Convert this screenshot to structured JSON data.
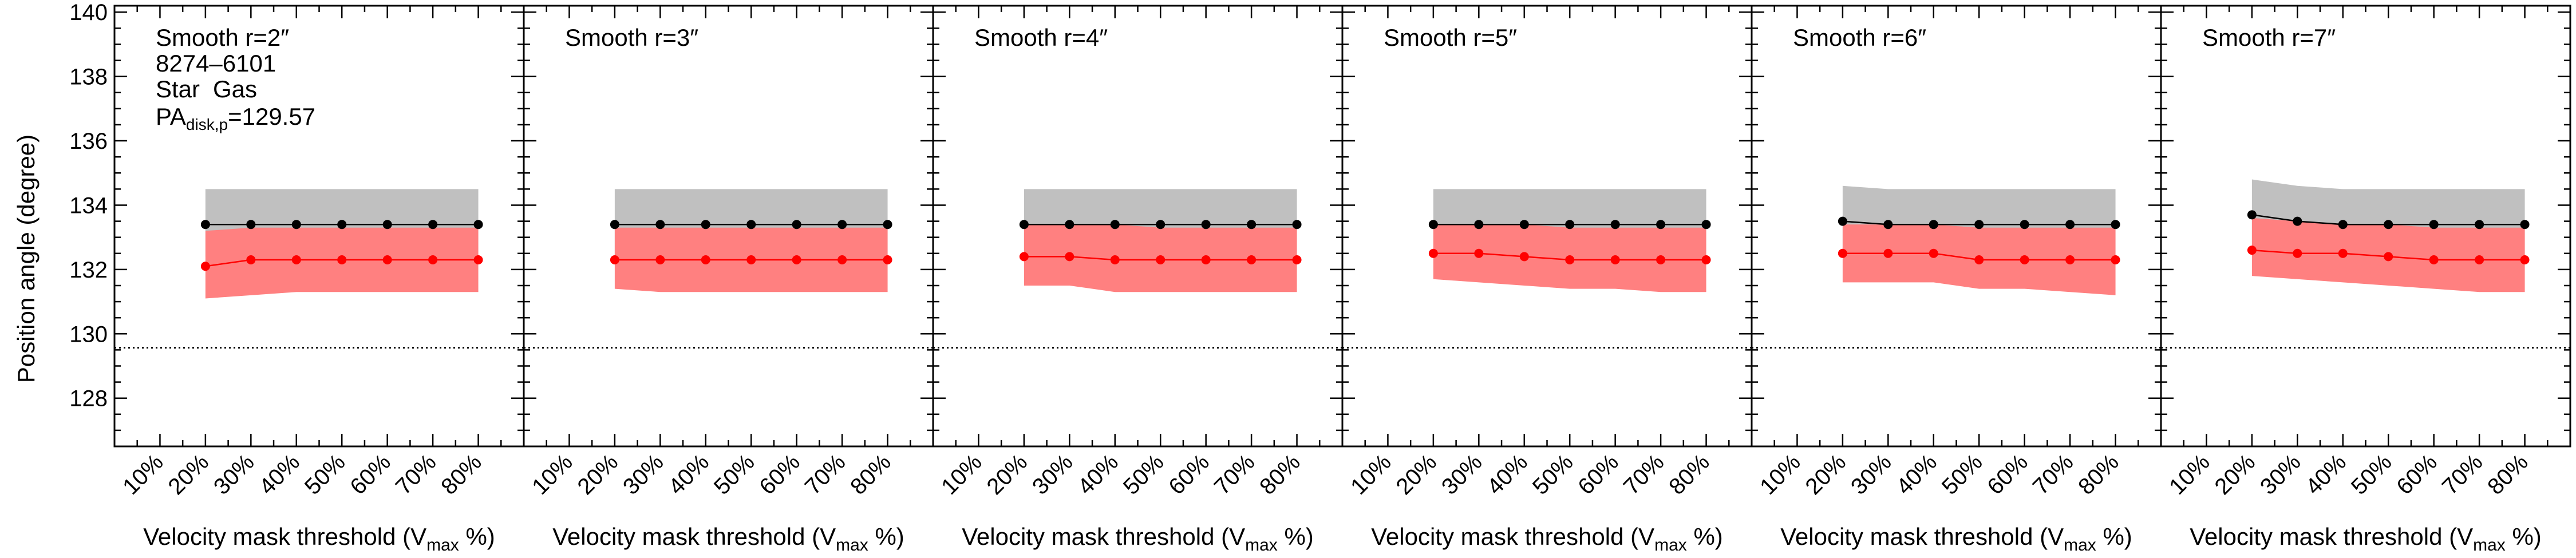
{
  "figure": {
    "galaxy_id": "8274–6101",
    "legend_star": "Star",
    "legend_gas": "Gas",
    "pa_prefix": "PA",
    "pa_subscript": "disk,p",
    "pa_value_text": "=129.57",
    "ylabel": "Position angle (degree)",
    "xlabel_prefix": "Velocity mask threshold (V",
    "xlabel_sub": "max",
    "xlabel_suffix": " %)"
  },
  "colors": {
    "star_line": "#000000",
    "star_band": "#c0c0c0",
    "gas_line": "#ff0000",
    "gas_band": "#ff8080",
    "legend_gas_text": "#ff0000",
    "ref_line": "#000000"
  },
  "chart_data": {
    "type": "line",
    "x_tick_labels": [
      "10%",
      "20%",
      "30%",
      "40%",
      "50%",
      "60%",
      "70%",
      "80%"
    ],
    "x_ticks": [
      10,
      20,
      30,
      40,
      50,
      60,
      70,
      80
    ],
    "xlim": [
      0,
      90
    ],
    "ylim": [
      126.5,
      140.2
    ],
    "y_ticks": [
      128,
      130,
      132,
      134,
      136,
      138,
      140
    ],
    "y_tick_labels": [
      "128",
      "130",
      "132",
      "134",
      "136",
      "138",
      "140"
    ],
    "reference_line": 129.57,
    "x": [
      20,
      30,
      40,
      50,
      60,
      70,
      80
    ],
    "panels": [
      {
        "title": "Smooth r=2″",
        "star": [
          133.4,
          133.4,
          133.4,
          133.4,
          133.4,
          133.4,
          133.4
        ],
        "star_band_upper": [
          134.5,
          134.5,
          134.5,
          134.5,
          134.5,
          134.5,
          134.5
        ],
        "star_band_lower": [
          132.4,
          132.4,
          132.4,
          132.4,
          132.4,
          132.4,
          132.4
        ],
        "gas": [
          132.1,
          132.3,
          132.3,
          132.3,
          132.3,
          132.3,
          132.3
        ],
        "gas_band_upper": [
          133.2,
          133.3,
          133.3,
          133.3,
          133.3,
          133.3,
          133.3
        ],
        "gas_band_lower": [
          131.1,
          131.2,
          131.3,
          131.3,
          131.3,
          131.3,
          131.3
        ]
      },
      {
        "title": "Smooth r=3″",
        "star": [
          133.4,
          133.4,
          133.4,
          133.4,
          133.4,
          133.4,
          133.4
        ],
        "star_band_upper": [
          134.5,
          134.5,
          134.5,
          134.5,
          134.5,
          134.5,
          134.5
        ],
        "star_band_lower": [
          132.4,
          132.4,
          132.4,
          132.4,
          132.4,
          132.4,
          132.4
        ],
        "gas": [
          132.3,
          132.3,
          132.3,
          132.3,
          132.3,
          132.3,
          132.3
        ],
        "gas_band_upper": [
          133.3,
          133.3,
          133.3,
          133.3,
          133.3,
          133.3,
          133.3
        ],
        "gas_band_lower": [
          131.4,
          131.3,
          131.3,
          131.3,
          131.3,
          131.3,
          131.3
        ]
      },
      {
        "title": "Smooth r=4″",
        "star": [
          133.4,
          133.4,
          133.4,
          133.4,
          133.4,
          133.4,
          133.4
        ],
        "star_band_upper": [
          134.5,
          134.5,
          134.5,
          134.5,
          134.5,
          134.5,
          134.5
        ],
        "star_band_lower": [
          132.4,
          132.4,
          132.4,
          132.4,
          132.4,
          132.4,
          132.4
        ],
        "gas": [
          132.4,
          132.4,
          132.3,
          132.3,
          132.3,
          132.3,
          132.3
        ],
        "gas_band_upper": [
          133.4,
          133.4,
          133.4,
          133.3,
          133.3,
          133.3,
          133.3
        ],
        "gas_band_lower": [
          131.5,
          131.5,
          131.3,
          131.3,
          131.3,
          131.3,
          131.3
        ]
      },
      {
        "title": "Smooth r=5″",
        "star": [
          133.4,
          133.4,
          133.4,
          133.4,
          133.4,
          133.4,
          133.4
        ],
        "star_band_upper": [
          134.5,
          134.5,
          134.5,
          134.5,
          134.5,
          134.5,
          134.5
        ],
        "star_band_lower": [
          132.4,
          132.4,
          132.4,
          132.4,
          132.4,
          132.4,
          132.4
        ],
        "gas": [
          132.5,
          132.5,
          132.4,
          132.3,
          132.3,
          132.3,
          132.3
        ],
        "gas_band_upper": [
          133.4,
          133.4,
          133.4,
          133.3,
          133.3,
          133.3,
          133.3
        ],
        "gas_band_lower": [
          131.7,
          131.6,
          131.5,
          131.4,
          131.4,
          131.3,
          131.3
        ]
      },
      {
        "title": "Smooth r=6″",
        "star": [
          133.5,
          133.4,
          133.4,
          133.4,
          133.4,
          133.4,
          133.4
        ],
        "star_band_upper": [
          134.6,
          134.5,
          134.5,
          134.5,
          134.5,
          134.5,
          134.5
        ],
        "star_band_lower": [
          132.5,
          132.4,
          132.4,
          132.4,
          132.4,
          132.4,
          132.4
        ],
        "gas": [
          132.5,
          132.5,
          132.5,
          132.3,
          132.3,
          132.3,
          132.3
        ],
        "gas_band_upper": [
          133.4,
          133.4,
          133.4,
          133.3,
          133.3,
          133.3,
          133.3
        ],
        "gas_band_lower": [
          131.6,
          131.6,
          131.6,
          131.4,
          131.4,
          131.3,
          131.2
        ]
      },
      {
        "title": "Smooth r=7″",
        "star": [
          133.7,
          133.5,
          133.4,
          133.4,
          133.4,
          133.4,
          133.4
        ],
        "star_band_upper": [
          134.8,
          134.6,
          134.5,
          134.5,
          134.5,
          134.5,
          134.5
        ],
        "star_band_lower": [
          132.7,
          132.5,
          132.4,
          132.4,
          132.4,
          132.4,
          132.4
        ],
        "gas": [
          132.6,
          132.5,
          132.5,
          132.4,
          132.3,
          132.3,
          132.3
        ],
        "gas_band_upper": [
          133.6,
          133.5,
          133.4,
          133.4,
          133.3,
          133.3,
          133.3
        ],
        "gas_band_lower": [
          131.8,
          131.7,
          131.6,
          131.5,
          131.4,
          131.3,
          131.3
        ]
      }
    ]
  }
}
